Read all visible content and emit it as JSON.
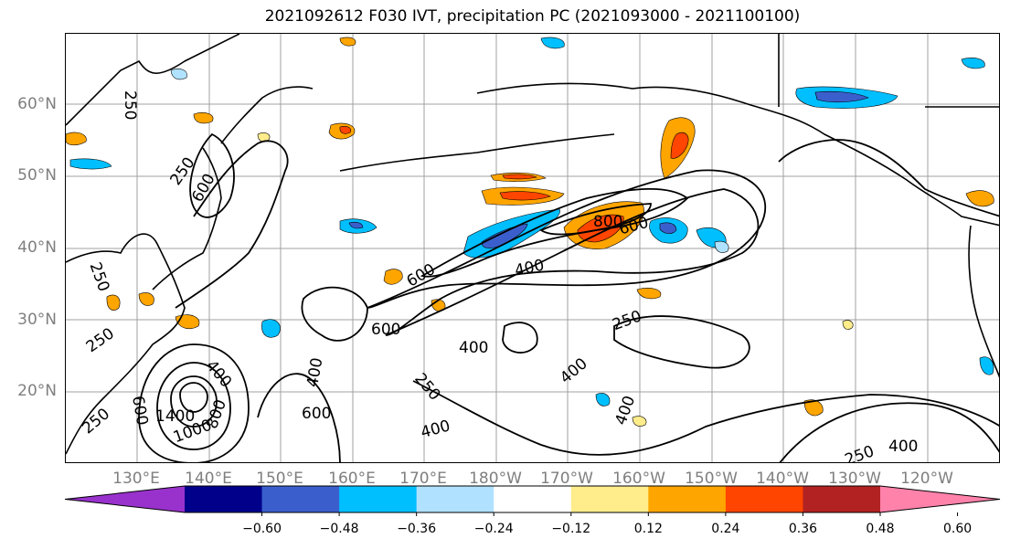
{
  "title": "2021092612 F030 IVT, precipitation PC (2021093000 - 2021100100)",
  "map": {
    "lat_labels": [
      "60°N",
      "50°N",
      "40°N",
      "30°N",
      "20°N"
    ],
    "lon_labels": [
      "130°E",
      "140°E",
      "150°E",
      "160°E",
      "170°E",
      "180°W",
      "170°W",
      "160°W",
      "150°W",
      "140°W",
      "130°W",
      "120°W"
    ],
    "ivt_contour_labels": [
      "250",
      "250",
      "250",
      "250",
      "250",
      "250",
      "250",
      "250",
      "400",
      "400",
      "400",
      "400",
      "400",
      "400",
      "400",
      "400",
      "600",
      "600",
      "600",
      "600",
      "800",
      "1000",
      "1400",
      "600",
      "600",
      "800"
    ],
    "contour_color": "#000000",
    "grid_color": "#a0a0a0"
  },
  "colorbar": {
    "ticks": [
      "−0.60",
      "−0.48",
      "−0.36",
      "−0.24",
      "−0.12",
      "0.12",
      "0.24",
      "0.36",
      "0.48",
      "0.60"
    ],
    "colors": [
      "#9932cc",
      "#00008b",
      "#3a5fcd",
      "#00bfff",
      "#b0e2ff",
      "#ffffff",
      "#ffec8b",
      "#ffa500",
      "#ff4500",
      "#b22222",
      "#ff82ab"
    ]
  }
}
